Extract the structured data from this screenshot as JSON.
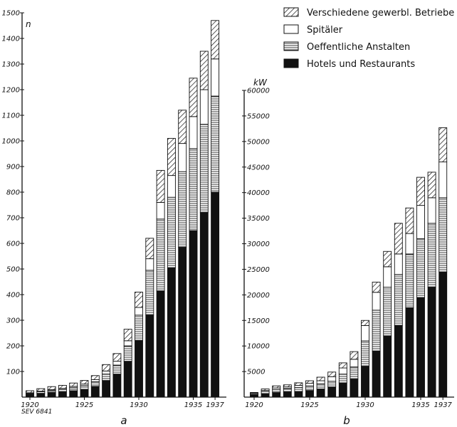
{
  "chart_data": [
    {
      "type": "bar",
      "stacked": true,
      "panel_label": "a",
      "ylabel": "n",
      "ylim": [
        0,
        1500
      ],
      "yticks": [
        100,
        200,
        300,
        400,
        500,
        600,
        700,
        800,
        900,
        1000,
        1100,
        1200,
        1300,
        1400,
        1500
      ],
      "ytick_labels": [
        "100",
        "200",
        "300",
        "400",
        "500",
        "600",
        "700",
        "800",
        "900",
        "1000",
        "1100",
        "1200",
        "1300",
        "1400",
        "1500"
      ],
      "categories": [
        "1920",
        "1921",
        "1922",
        "1923",
        "1924",
        "1925",
        "1926",
        "1927",
        "1928",
        "1929",
        "1930",
        "1931",
        "1932",
        "1933",
        "1934",
        "1935",
        "1936",
        "1937"
      ],
      "xtick_labels": [
        "1920",
        "1925",
        "1930",
        "1935",
        "1937"
      ],
      "series": [
        {
          "name": "Hotels und Restaurants",
          "values": [
            12,
            15,
            18,
            20,
            25,
            30,
            42,
            65,
            90,
            140,
            220,
            320,
            415,
            505,
            585,
            650,
            720,
            800
          ]
        },
        {
          "name": "Oeffentliche Anstalten",
          "values": [
            4,
            6,
            8,
            10,
            12,
            15,
            18,
            25,
            35,
            60,
            100,
            175,
            280,
            275,
            295,
            320,
            345,
            375
          ]
        },
        {
          "name": "Spitäler",
          "values": [
            1,
            2,
            3,
            4,
            5,
            6,
            8,
            12,
            15,
            20,
            30,
            45,
            65,
            85,
            110,
            125,
            135,
            145
          ]
        },
        {
          "name": "Verschiedene gewerbl. Betriebe",
          "values": [
            8,
            10,
            12,
            12,
            13,
            14,
            16,
            25,
            30,
            45,
            60,
            80,
            125,
            145,
            130,
            150,
            150,
            150
          ]
        }
      ],
      "legend": "top-right",
      "annotation": "SEV 6841"
    },
    {
      "type": "bar",
      "stacked": true,
      "panel_label": "b",
      "ylabel": "kW",
      "ylim": [
        0,
        60000
      ],
      "yticks": [
        5000,
        10000,
        15000,
        20000,
        25000,
        30000,
        35000,
        40000,
        45000,
        50000,
        55000,
        60000
      ],
      "ytick_labels": [
        "5000",
        "10000",
        "15000",
        "20000",
        "25000",
        "30000",
        "35000",
        "40000",
        "45000",
        "50000",
        "55000",
        "60000"
      ],
      "categories": [
        "1920",
        "1921",
        "1922",
        "1923",
        "1924",
        "1925",
        "1926",
        "1927",
        "1928",
        "1929",
        "1930",
        "1931",
        "1932",
        "1933",
        "1934",
        "1935",
        "1936",
        "1937"
      ],
      "xtick_labels": [
        "1920",
        "1925",
        "1930",
        "1935",
        "1937"
      ],
      "series": [
        {
          "name": "Hotels und Restaurants",
          "values": [
            500,
            700,
            900,
            1000,
            1100,
            1300,
            1600,
            2000,
            2800,
            3500,
            6000,
            9000,
            12000,
            14000,
            17500,
            19500,
            21500,
            24500
          ]
        },
        {
          "name": "Oeffentliche Anstalten",
          "values": [
            200,
            400,
            600,
            700,
            800,
            900,
            1000,
            1100,
            1700,
            2400,
            5000,
            8000,
            9500,
            10000,
            10500,
            11500,
            12500,
            14500
          ]
        },
        {
          "name": "Spitäler",
          "values": [
            100,
            200,
            300,
            300,
            400,
            500,
            600,
            900,
            1200,
            1500,
            3000,
            3500,
            4000,
            4000,
            4000,
            6500,
            5000,
            7000
          ]
        },
        {
          "name": "Verschiedene gewerbl. Betriebe",
          "values": [
            100,
            300,
            400,
            400,
            500,
            500,
            700,
            900,
            1000,
            1500,
            1000,
            2000,
            3000,
            6000,
            5000,
            5500,
            5000,
            6700
          ]
        }
      ],
      "legend": "top-right"
    }
  ]
}
